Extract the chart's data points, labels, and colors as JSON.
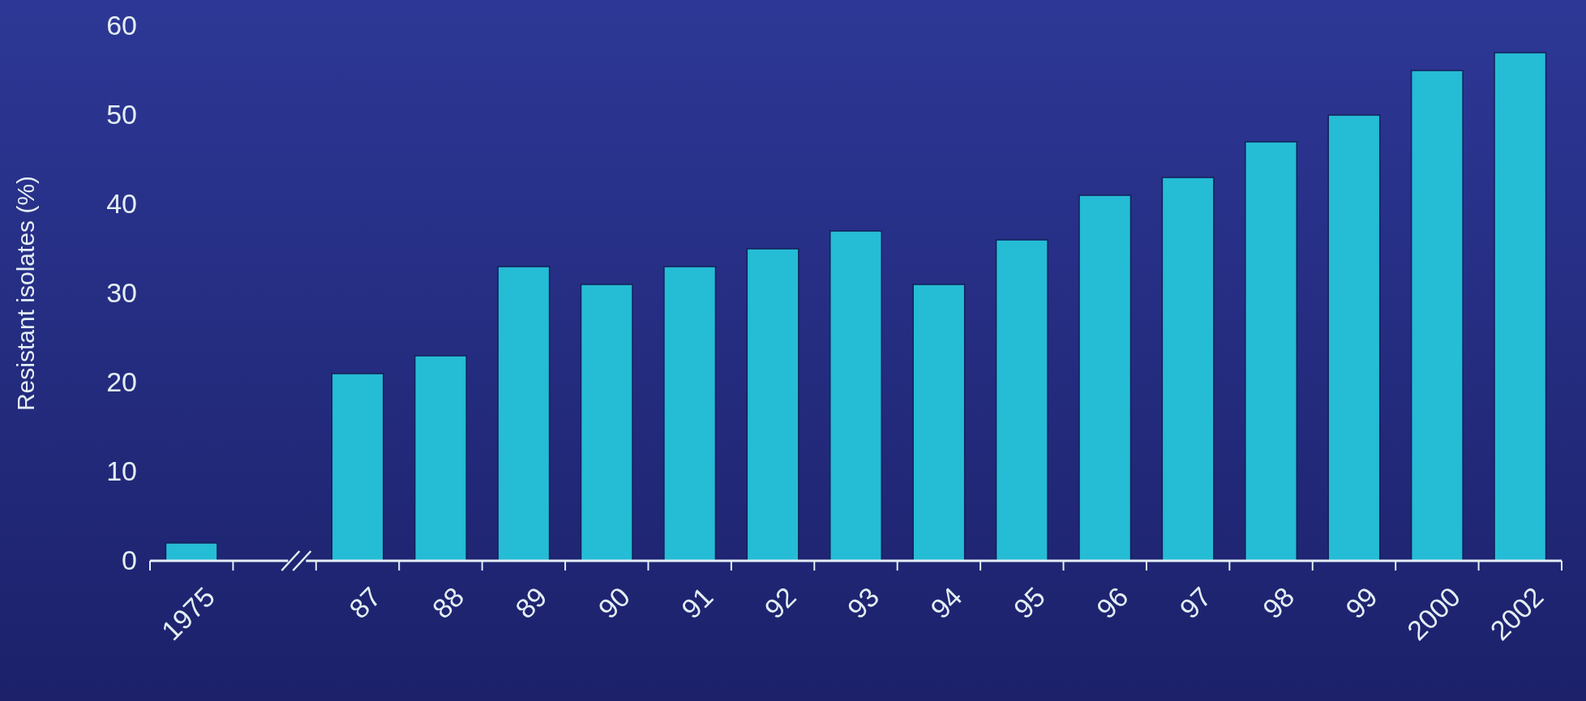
{
  "chart_data": {
    "type": "bar",
    "ylabel": "Resistant isolates (%)",
    "categories": [
      "1975",
      null,
      "87",
      "88",
      "89",
      "90",
      "91",
      "92",
      "93",
      "94",
      "95",
      "96",
      "97",
      "98",
      "99",
      "2000",
      "2002"
    ],
    "values": [
      2,
      null,
      21,
      23,
      33,
      31,
      33,
      35,
      37,
      31,
      36,
      41,
      43,
      47,
      50,
      55,
      57
    ],
    "color": "#25bcd6",
    "ylim": [
      0,
      60
    ],
    "yticks": [
      0,
      10,
      20,
      30,
      40,
      50,
      60
    ],
    "grid": false
  }
}
